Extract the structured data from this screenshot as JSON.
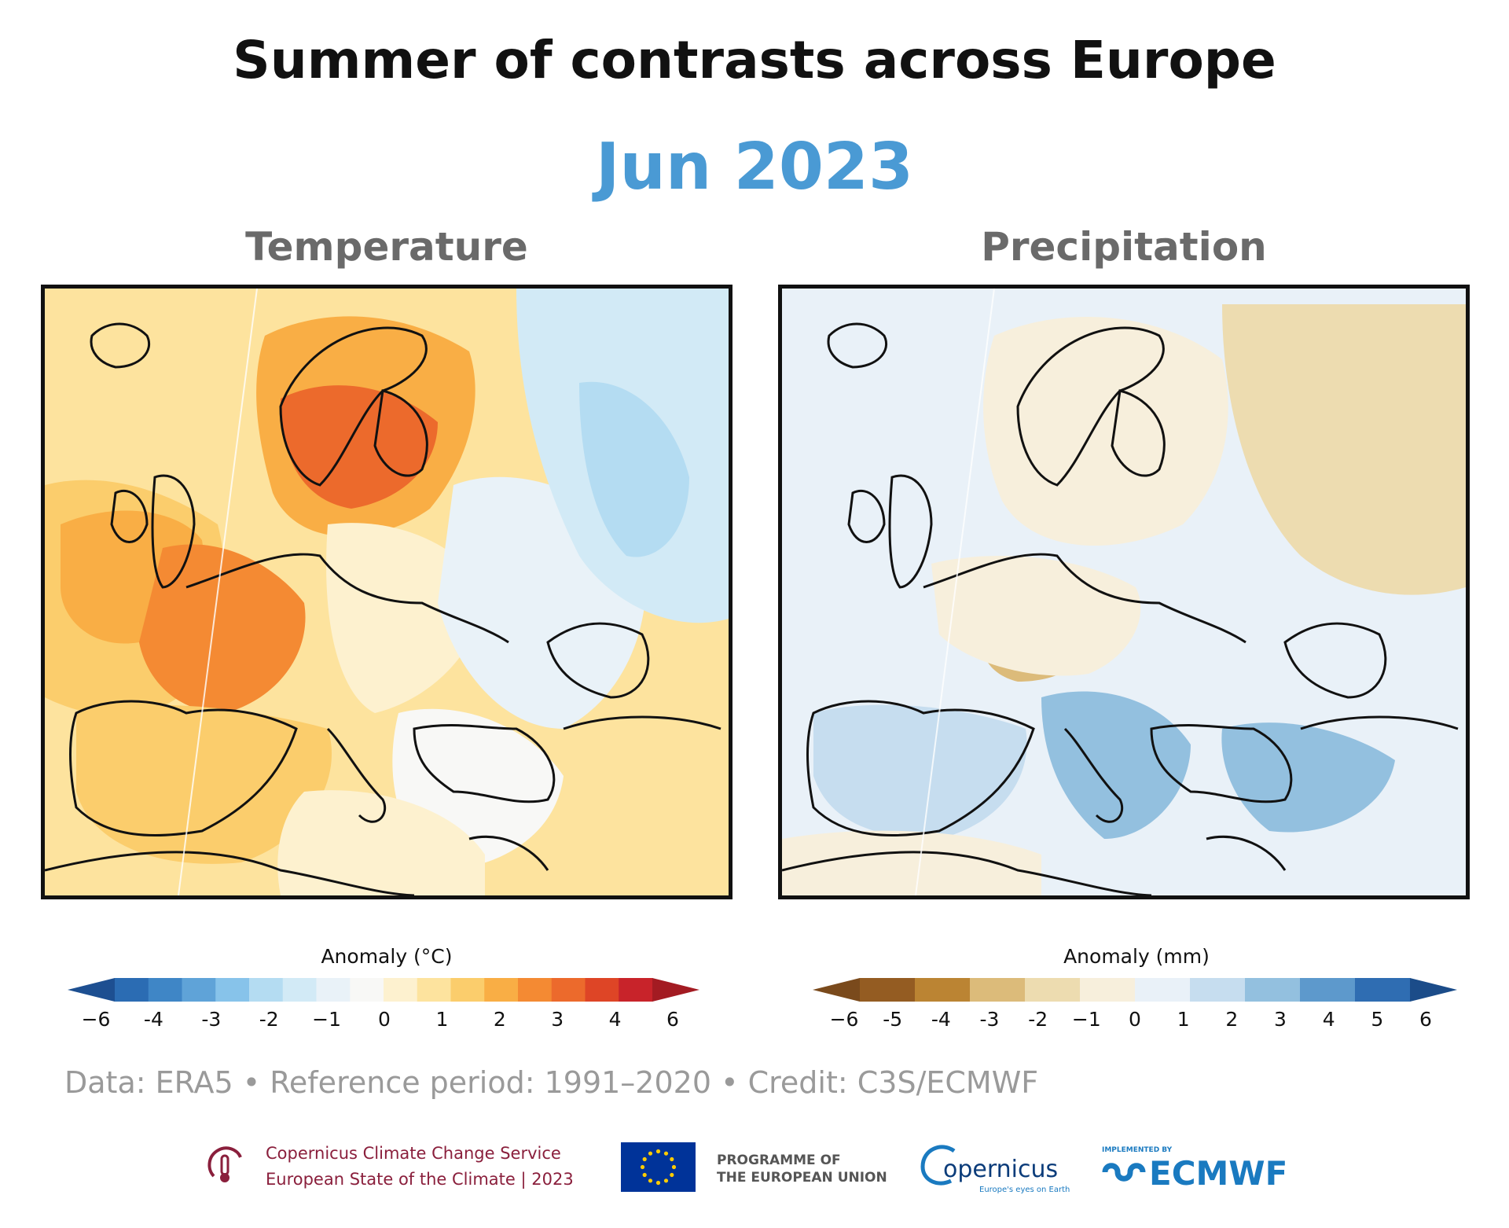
{
  "title": "Summer of contrasts across Europe",
  "subtitle": "Jun 2023",
  "panels": {
    "temperature": {
      "title": "Temperature",
      "legend_label": "Anomaly (°C)",
      "ticks": [
        "−6",
        "-4",
        "-3",
        "-2",
        "−1",
        "0",
        "1",
        "2",
        "3",
        "4",
        "6"
      ],
      "colors": [
        "#1d4f91",
        "#2b6cb3",
        "#3f86c6",
        "#5fa3d8",
        "#87c3ea",
        "#b4dcf2",
        "#d2eaf6",
        "#e9f2f8",
        "#f8f8f6",
        "#fdf1cf",
        "#fde39e",
        "#fbcd6c",
        "#f9ae45",
        "#f48a33",
        "#ec6a2c",
        "#de4526",
        "#c8232a",
        "#a31b22"
      ],
      "regions": [
        {
          "name": "atlantic-west",
          "tone": "#fde39e"
        },
        {
          "name": "atlantic-warm",
          "tone": "#fbcd6c"
        },
        {
          "name": "ireland-biscay",
          "tone": "#f9ae45"
        },
        {
          "name": "france-uk",
          "tone": "#f48a33"
        },
        {
          "name": "scandinavia",
          "tone": "#f9ae45"
        },
        {
          "name": "scandinavia-core",
          "tone": "#ec6a2c"
        },
        {
          "name": "iberia",
          "tone": "#fbcd6c"
        },
        {
          "name": "central-europe",
          "tone": "#fdf1cf"
        },
        {
          "name": "eastern-europe",
          "tone": "#e9f2f8"
        },
        {
          "name": "russia",
          "tone": "#d2eaf6"
        },
        {
          "name": "russia-cool",
          "tone": "#b4dcf2"
        },
        {
          "name": "balkans",
          "tone": "#f8f8f6"
        },
        {
          "name": "mediterranean",
          "tone": "#fdf1cf"
        }
      ]
    },
    "precipitation": {
      "title": "Precipitation",
      "legend_label": "Anomaly (mm)",
      "ticks": [
        "−6",
        "-5",
        "-4",
        "-3",
        "-2",
        "−1",
        "0",
        "1",
        "2",
        "3",
        "4",
        "5",
        "6"
      ],
      "colors": [
        "#7a4a1c",
        "#945c22",
        "#bb8433",
        "#dcbb7a",
        "#eddcb0",
        "#f7efdc",
        "#e9f1f8",
        "#c6ddef",
        "#93c0df",
        "#5d99cc",
        "#2f6db2",
        "#1b4c89"
      ],
      "regions": [
        {
          "name": "atlantic",
          "tone": "#e9f1f8"
        },
        {
          "name": "scandinavia",
          "tone": "#f7efdc"
        },
        {
          "name": "russia",
          "tone": "#eddcb0"
        },
        {
          "name": "alps-dry",
          "tone": "#dcbb7a"
        },
        {
          "name": "central-europe",
          "tone": "#f7efdc"
        },
        {
          "name": "iberia",
          "tone": "#c6ddef"
        },
        {
          "name": "italy-balkans",
          "tone": "#93c0df"
        },
        {
          "name": "turkey",
          "tone": "#93c0df"
        },
        {
          "name": "north-africa",
          "tone": "#f7efdc"
        }
      ]
    }
  },
  "footer": {
    "data_line": "Data: ERA5 • Reference period: 1991–2020 • Credit: C3S/ECMWF"
  },
  "logos": {
    "c3s_line1": "Copernicus Climate Change Service",
    "c3s_line2": "European State of the Climate | 2023",
    "eu_line1": "PROGRAMME OF",
    "eu_line2": "THE EUROPEAN UNION",
    "copernicus": "opernicus",
    "copernicus_tag": "Europe's eyes on Earth",
    "ecmwf_small": "IMPLEMENTED BY",
    "ecmwf": "ECMWF"
  },
  "colors": {
    "subtitle": "#4a9ad4",
    "c3s": "#8a1f3c",
    "eu_blue": "#003399",
    "ecmwf": "#1a7ac0"
  }
}
